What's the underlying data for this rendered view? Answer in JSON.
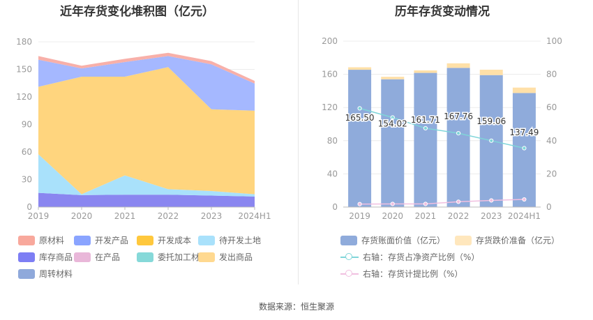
{
  "left_chart": {
    "title": "近年存货变化堆积图（亿元）",
    "chart_data": {
      "type": "area",
      "stacked": true,
      "categories": [
        "2019",
        "2020",
        "2021",
        "2022",
        "2023",
        "2024H1"
      ],
      "ylim": [
        0,
        180
      ],
      "yticks": [
        "0",
        "30",
        "60",
        "90",
        "120",
        "150",
        "180"
      ],
      "legend_position": "bottom",
      "series": [
        {
          "name": "库存商品",
          "color": "#8a86f0",
          "values": [
            15.5,
            13.0,
            13.5,
            13.5,
            12.5,
            11.5
          ]
        },
        {
          "name": "待开发土地",
          "color": "#a9e1fb",
          "values": [
            42.0,
            1.0,
            21.0,
            6.0,
            5.0,
            2.5
          ]
        },
        {
          "name": "开发成本",
          "color": "#ffd57e",
          "values": [
            73.5,
            128.0,
            107.5,
            133.0,
            89.0,
            91.0
          ]
        },
        {
          "name": "开发产品",
          "color": "#a5b8ff",
          "values": [
            29.5,
            9.0,
            16.0,
            12.0,
            49.0,
            29.5
          ]
        },
        {
          "name": "原材料",
          "color": "#f8b0a9",
          "values": [
            4.0,
            3.0,
            3.5,
            3.5,
            3.5,
            3.0
          ]
        }
      ]
    },
    "legend": [
      {
        "label": "原材料",
        "color": "#f8a89c"
      },
      {
        "label": "开发产品",
        "color": "#8aa4ff"
      },
      {
        "label": "开发成本",
        "color": "#ffc83d"
      },
      {
        "label": "待开发土地",
        "color": "#a9e1fb"
      },
      {
        "label": "库存商品",
        "color": "#7d7ef4"
      },
      {
        "label": "在产品",
        "color": "#e9b7d9"
      },
      {
        "label": "委托加工材料",
        "color": "#86d9d9"
      },
      {
        "label": "发出商品",
        "color": "#ffd990"
      },
      {
        "label": "周转材料",
        "color": "#8fa9db"
      }
    ]
  },
  "right_chart": {
    "title": "历年存货变动情况",
    "chart_data": {
      "type": "bar",
      "stacked": true,
      "categories": [
        "2019",
        "2020",
        "2021",
        "2022",
        "2023",
        "2024H1"
      ],
      "ylim_left": [
        0,
        200
      ],
      "ylim_right": [
        0,
        100
      ],
      "yticks_left": [
        "0",
        "40",
        "80",
        "120",
        "160",
        "200"
      ],
      "yticks_right": [
        "0",
        "20",
        "40",
        "60",
        "80",
        "100"
      ],
      "series": [
        {
          "name": "存货账面价值（亿元）",
          "axis": "left",
          "color": "#8fabdb",
          "values": [
            165.5,
            154.02,
            161.71,
            167.76,
            159.06,
            137.49
          ],
          "labels": [
            "165.50",
            "154.02",
            "161.71",
            "167.76",
            "159.06",
            "137.49"
          ]
        },
        {
          "name": "存货跌价准备（亿元）",
          "axis": "left",
          "color": "#ffe0a8",
          "values": [
            3.0,
            3.0,
            3.0,
            5.5,
            6.5,
            6.5
          ]
        },
        {
          "name": "右轴：存货占净资产比例（%）",
          "axis": "right",
          "type": "line",
          "color": "#7fd5d9",
          "values": [
            59.5,
            54.0,
            47.5,
            44.5,
            40.0,
            35.5
          ]
        },
        {
          "name": "右轴：存货计提比例（%）",
          "axis": "right",
          "type": "line",
          "color": "#f1bfe0",
          "values": [
            1.8,
            1.9,
            1.9,
            3.2,
            4.0,
            4.6
          ]
        }
      ]
    },
    "legend": [
      {
        "label": "存货账面价值（亿元）",
        "color": "#8fabdb",
        "kind": "box"
      },
      {
        "label": "存货跌价准备（亿元）",
        "color": "#ffe7bd",
        "kind": "box"
      },
      {
        "label": "右轴：存货占净资产比例（%）",
        "color": "#7fd5d9",
        "kind": "line"
      },
      {
        "label": "右轴：存货计提比例（%）",
        "color": "#f1bfe0",
        "kind": "line"
      }
    ]
  },
  "source": "数据来源：恒生聚源"
}
